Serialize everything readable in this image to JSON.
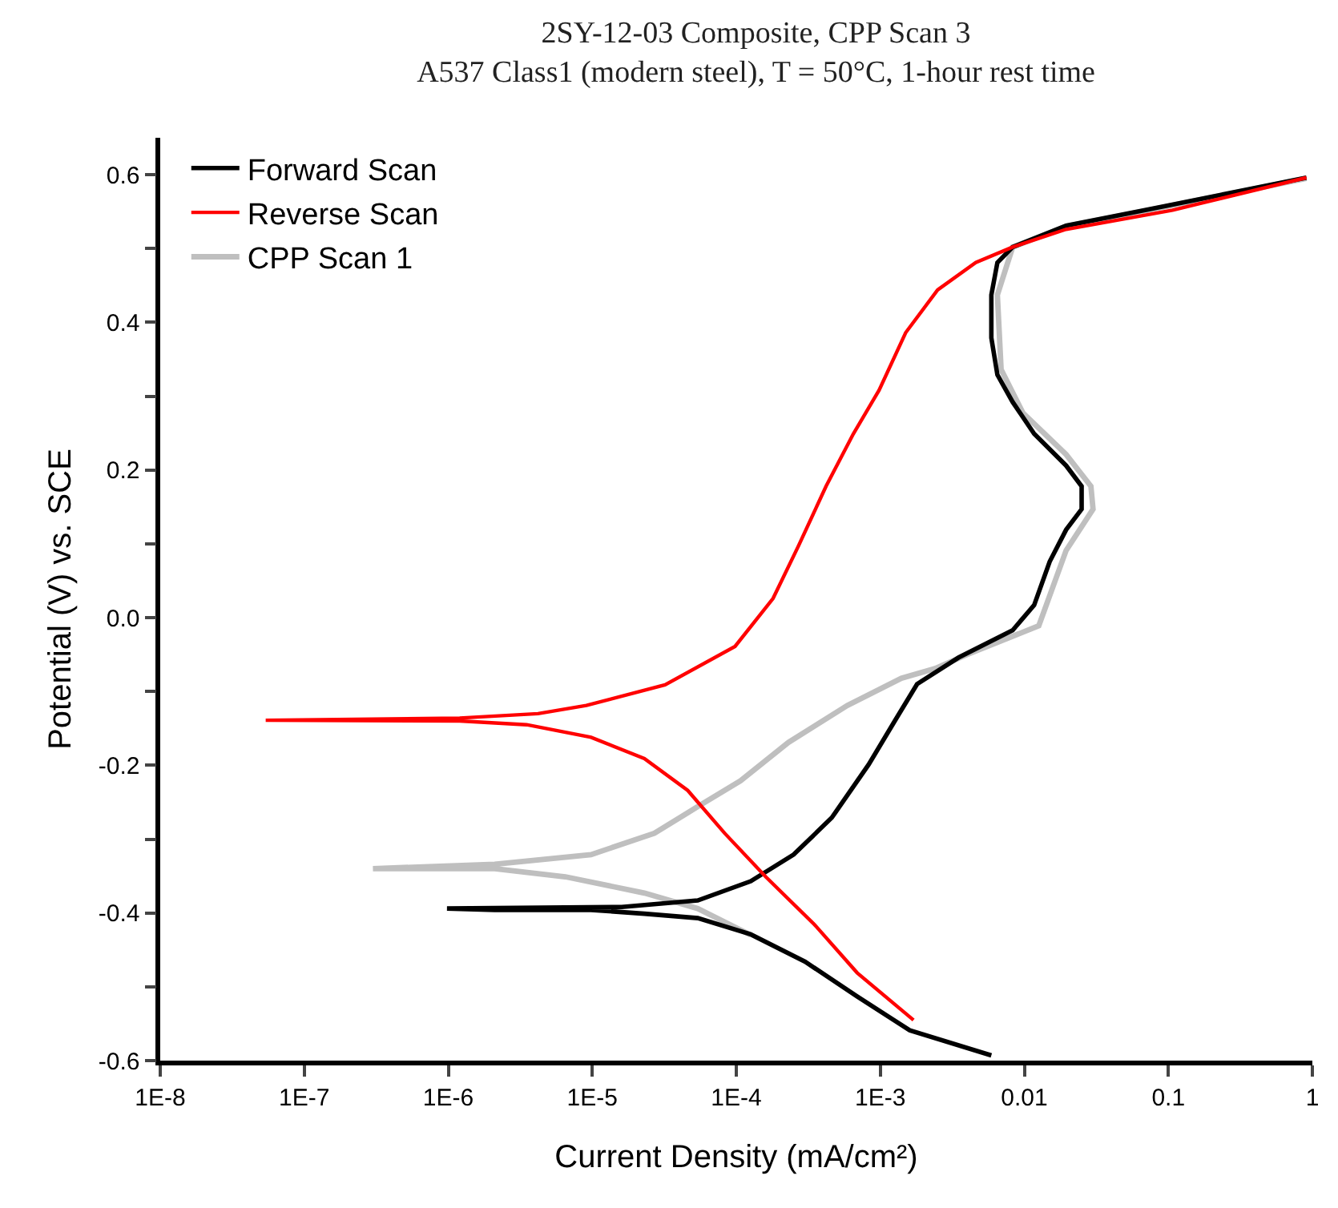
{
  "chart_data": {
    "type": "line",
    "title": "2SY-12-03 Composite, CPP Scan 3",
    "subtitle": "A537 Class1 (modern steel), T = 50°C, 1-hour rest time",
    "xlabel": "Current Density (mA/cm²)",
    "ylabel": "Potential (V) vs. SCE",
    "log": "x",
    "grid": false,
    "legend": "top left",
    "marker": "none",
    "line_style": "solid",
    "xlim": [
      1e-08,
      1
    ],
    "xticks": [
      {
        "value": 1e-08,
        "label": "1E-8"
      },
      {
        "value": 1e-07,
        "label": "1E-7"
      },
      {
        "value": 1e-06,
        "label": "1E-6"
      },
      {
        "value": 1e-05,
        "label": "1E-5"
      },
      {
        "value": 0.0001,
        "label": "1E-4"
      },
      {
        "value": 0.001,
        "label": "1E-3"
      },
      {
        "value": 0.01,
        "label": "0.01"
      },
      {
        "value": 0.1,
        "label": "0.1"
      },
      {
        "value": 1,
        "label": "1"
      }
    ],
    "ylim": [
      -0.6,
      0.65
    ],
    "yticks": [
      {
        "value": -0.6,
        "label": "-0.6"
      },
      {
        "value": -0.5,
        "label": null
      },
      {
        "value": -0.4,
        "label": "-0.4"
      },
      {
        "value": -0.3,
        "label": null
      },
      {
        "value": -0.2,
        "label": "-0.2"
      },
      {
        "value": -0.1,
        "label": null
      },
      {
        "value": 0,
        "label": "0.0"
      },
      {
        "value": 0.1,
        "label": null
      },
      {
        "value": 0.2,
        "label": "0.2"
      },
      {
        "value": 0.3,
        "label": null
      },
      {
        "value": 0.4,
        "label": "0.4"
      },
      {
        "value": 0.5,
        "label": null
      },
      {
        "value": 0.6,
        "label": "0.6"
      }
    ],
    "series": [
      {
        "name": "Forward Scan",
        "color": "#000000",
        "x": [
          0.0059,
          0.0016,
          0.00069,
          0.0003,
          0.000126,
          5.4e-05,
          2.3e-05,
          9.8e-06,
          2.1e-06,
          9.8e-07,
          1.6e-05,
          5.4e-05,
          0.000126,
          0.00025,
          0.00046,
          0.00083,
          0.00126,
          0.0018,
          0.0035,
          0.0083,
          0.0117,
          0.015,
          0.0195,
          0.025,
          0.025,
          0.0195,
          0.0117,
          0.0083,
          0.0065,
          0.0059,
          0.0059,
          0.0065,
          0.0083,
          0.0195,
          0.069,
          0.25,
          0.91
        ],
        "values": [
          -0.593,
          -0.559,
          -0.513,
          -0.466,
          -0.429,
          -0.407,
          -0.401,
          -0.396,
          -0.396,
          -0.394,
          -0.392,
          -0.383,
          -0.357,
          -0.321,
          -0.271,
          -0.199,
          -0.14,
          -0.09,
          -0.054,
          -0.017,
          0.017,
          0.076,
          0.119,
          0.147,
          0.178,
          0.206,
          0.249,
          0.292,
          0.329,
          0.379,
          0.437,
          0.481,
          0.502,
          0.531,
          0.552,
          0.574,
          0.596
        ]
      },
      {
        "name": "Reverse Scan",
        "color": "#ff0000",
        "x": [
          0.91,
          0.107,
          0.0195,
          0.0083,
          0.0046,
          0.0025,
          0.0015,
          0.00098,
          0.00065,
          0.00042,
          0.00027,
          0.00018,
          9.8e-05,
          3.2e-05,
          9.1e-06,
          4.2e-06,
          1.2e-06,
          5.4e-08,
          1.2e-06,
          3.5e-06,
          9.8e-06,
          2.3e-05,
          4.6e-05,
          8.3e-05,
          0.00016,
          0.00035,
          0.00069,
          0.0017
        ],
        "values": [
          0.596,
          0.552,
          0.526,
          0.502,
          0.481,
          0.444,
          0.386,
          0.308,
          0.249,
          0.178,
          0.097,
          0.026,
          -0.039,
          -0.091,
          -0.119,
          -0.13,
          -0.136,
          -0.139,
          -0.14,
          -0.145,
          -0.162,
          -0.191,
          -0.234,
          -0.292,
          -0.351,
          -0.416,
          -0.481,
          -0.545
        ]
      },
      {
        "name": "CPP Scan 1",
        "color": "#bfbfbf",
        "x": [
          0.000126,
          5.4e-05,
          2.3e-05,
          6.5e-06,
          2.1e-06,
          3e-07,
          2.1e-06,
          9.8e-06,
          2.7e-05,
          5.4e-05,
          0.000107,
          0.00023,
          0.00059,
          0.0014,
          0.0024,
          0.004,
          0.0126,
          0.0195,
          0.03,
          0.029,
          0.0195,
          0.0098,
          0.0069,
          0.0065,
          0.0083,
          0.0195,
          0.069,
          0.25,
          0.91
        ],
        "values": [
          -0.43,
          -0.394,
          -0.373,
          -0.351,
          -0.34,
          -0.34,
          -0.334,
          -0.321,
          -0.292,
          -0.256,
          -0.221,
          -0.169,
          -0.119,
          -0.082,
          -0.069,
          -0.05,
          -0.011,
          0.091,
          0.147,
          0.178,
          0.221,
          0.277,
          0.336,
          0.437,
          0.502,
          0.53,
          0.551,
          0.573,
          0.595
        ]
      }
    ]
  }
}
